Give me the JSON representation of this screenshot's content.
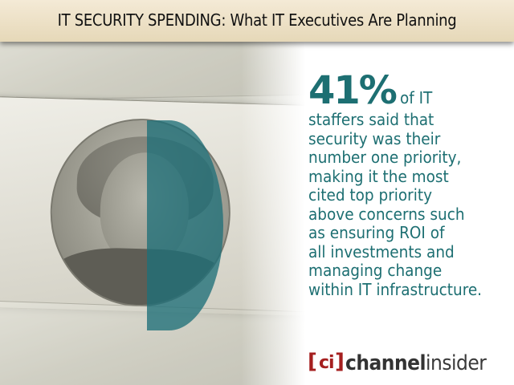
{
  "header": {
    "title": "IT SECURITY SPENDING: What IT Executives Are Planning"
  },
  "stat": {
    "value": "41%",
    "lead": "of IT",
    "lines": [
      "staffers said that",
      "security was their",
      "number one priority,",
      "making it the most",
      "cited top priority",
      "above concerns such",
      "as ensuring ROI of",
      "all investments and",
      "managing change",
      "within IT infrastructure."
    ]
  },
  "logo": {
    "mark": "ci",
    "name_a": "channel",
    "name_b": "insider"
  },
  "colors": {
    "accent": "#1d6f72",
    "logo_red": "#a51f1f",
    "title_bar": "#ece0c5"
  }
}
